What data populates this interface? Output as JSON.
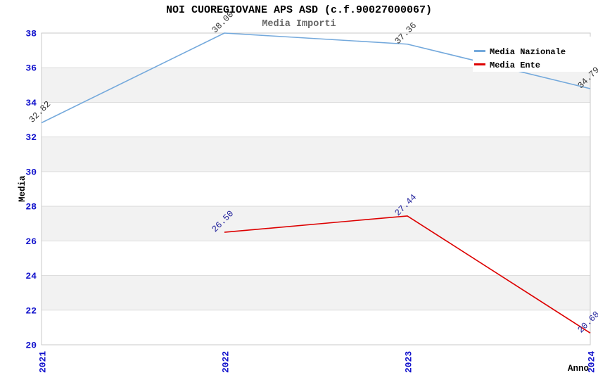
{
  "chart_data": {
    "type": "line",
    "title": "NOI CUOREGIOVANE APS ASD (c.f.90027000067)",
    "subtitle": "Media Importi",
    "xlabel": "Anno",
    "ylabel": "Media",
    "categories": [
      2021,
      2022,
      2023,
      2024
    ],
    "x_tick_labels": [
      "2021",
      "2022",
      "2023",
      "2024"
    ],
    "ylim": [
      20,
      38
    ],
    "ytick_step": 2,
    "y_tick_labels": [
      "20",
      "22",
      "24",
      "26",
      "28",
      "30",
      "32",
      "34",
      "36",
      "38"
    ],
    "grid": "horizontal-alternating-bands",
    "legend_position": "top-right-inside",
    "series": [
      {
        "name": "Media Nazionale",
        "color": "#74A9DC",
        "label_color": "#333333",
        "points": [
          {
            "x": 2021,
            "y": 32.82,
            "label": "32.82"
          },
          {
            "x": 2022,
            "y": 38.0,
            "label": "38.00"
          },
          {
            "x": 2023,
            "y": 37.36,
            "label": "37.36"
          },
          {
            "x": 2024,
            "y": 34.79,
            "label": "34.79"
          }
        ]
      },
      {
        "name": "Media Ente",
        "color": "#DD0000",
        "label_color": "#1C1C99",
        "points": [
          {
            "x": 2022,
            "y": 26.5,
            "label": "26.50"
          },
          {
            "x": 2023,
            "y": 27.44,
            "label": "27.44"
          },
          {
            "x": 2024,
            "y": 20.68,
            "label": "20.68"
          }
        ]
      }
    ],
    "colors": {
      "tick_label": "#1111CC",
      "band": "#F2F2F2",
      "gridline": "#DDDDDD",
      "border": "#C8C8C8",
      "axis_label": "#000000",
      "subtitle": "#666666",
      "background": "#FFFFFF",
      "legend_background": "#FFFFFF"
    }
  }
}
